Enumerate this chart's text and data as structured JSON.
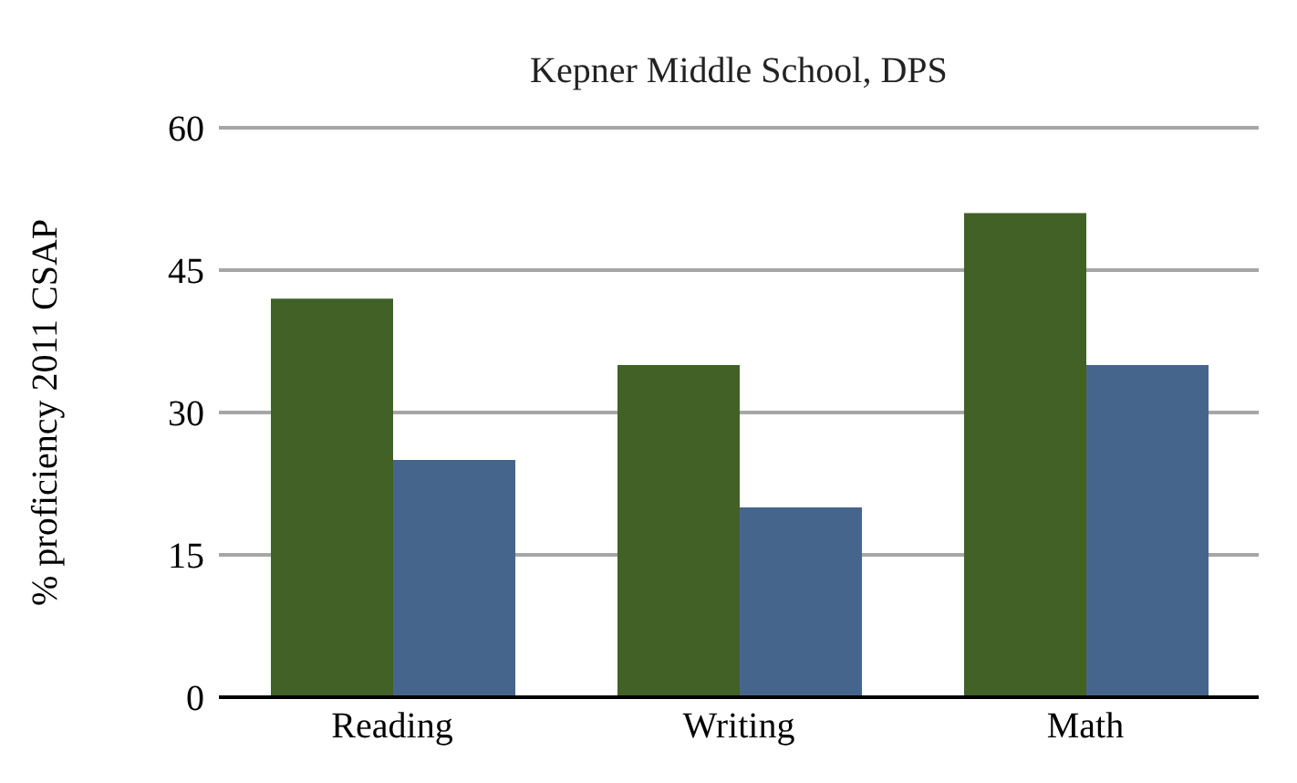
{
  "chart_data": {
    "type": "bar",
    "title": "Kepner Middle School, DPS",
    "ylabel": "% proficiency 2011 CSAP",
    "categories": [
      "Reading",
      "Writing",
      "Math"
    ],
    "series": [
      {
        "color": "#416127",
        "values": [
          42,
          35,
          51
        ]
      },
      {
        "color": "#46658c",
        "values": [
          25,
          20,
          35
        ]
      }
    ],
    "ylim": [
      0,
      60
    ],
    "yticks": [
      0,
      15,
      30,
      45,
      60
    ],
    "grid": "y",
    "legend": false
  }
}
